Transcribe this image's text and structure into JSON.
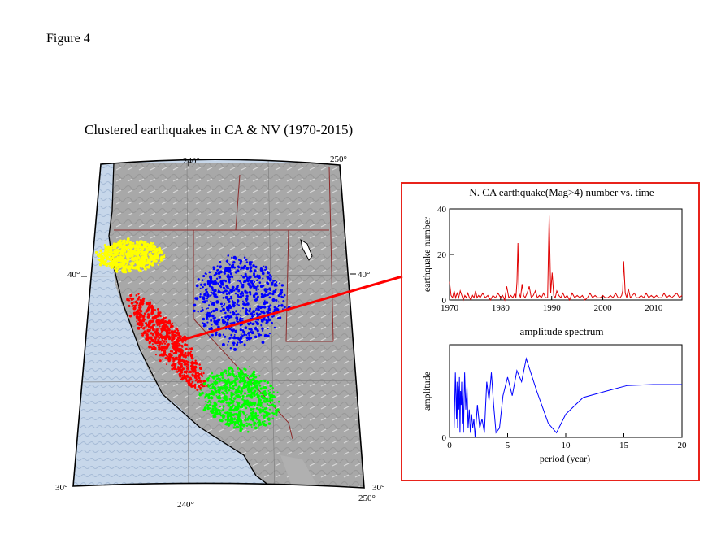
{
  "figure_label": "Figure 4",
  "map": {
    "title": "Clustered earthquakes in CA & NV  (1970-2015)",
    "lon_labels": [
      "240°",
      "250°"
    ],
    "lat_labels": [
      "40°",
      "30°"
    ],
    "clusters": [
      {
        "color": "#ffff00"
      },
      {
        "color": "#0000ff"
      },
      {
        "color": "#ff0000"
      },
      {
        "color": "#00ff00"
      }
    ]
  },
  "chart_data": [
    {
      "type": "line",
      "title": "N. CA earthquake(Mag>4) number vs. time",
      "xlabel": "",
      "ylabel": "earthquake number",
      "xlim": [
        1970,
        2015.5
      ],
      "ylim": [
        0,
        40
      ],
      "xticks": [
        1970,
        1980,
        1990,
        2000,
        2010
      ],
      "yticks": [
        0,
        20,
        40
      ],
      "color": "#e00000",
      "series": [
        {
          "x": [
            1970.0,
            1970.3,
            1970.6,
            1970.9,
            1971.2,
            1971.5,
            1971.8,
            1972.1,
            1972.4,
            1972.7,
            1973.0,
            1973.3,
            1973.6,
            1973.9,
            1974.2,
            1974.5,
            1974.8,
            1975.1,
            1975.4,
            1975.7,
            1976.0,
            1976.5,
            1977.0,
            1977.5,
            1978.0,
            1978.5,
            1979.0,
            1979.5,
            1980.0,
            1980.4,
            1980.8,
            1981.2,
            1981.6,
            1982.0,
            1982.4,
            1982.8,
            1983.0,
            1983.2,
            1983.4,
            1983.6,
            1983.9,
            1984.2,
            1984.5,
            1984.8,
            1985.2,
            1985.6,
            1986.0,
            1986.4,
            1986.8,
            1987.2,
            1987.6,
            1988.0,
            1988.4,
            1988.8,
            1989.2,
            1989.5,
            1989.8,
            1990.1,
            1990.4,
            1990.7,
            1991.0,
            1991.4,
            1991.8,
            1992.2,
            1992.6,
            1993.0,
            1993.5,
            1994.0,
            1994.5,
            1995.0,
            1995.5,
            1996.0,
            1996.5,
            1997.0,
            1997.5,
            1998.0,
            1998.5,
            1999.0,
            1999.5,
            2000.0,
            2000.5,
            2001.0,
            2001.5,
            2002.0,
            2002.5,
            2003.0,
            2003.4,
            2003.7,
            2003.9,
            2004.1,
            2004.4,
            2004.7,
            2005.0,
            2005.4,
            2005.8,
            2006.2,
            2006.6,
            2007.0,
            2007.5,
            2008.0,
            2008.5,
            2009.0,
            2009.5,
            2010.0,
            2010.5,
            2011.0,
            2011.5,
            2012.0,
            2012.5,
            2013.0,
            2013.5,
            2014.0,
            2014.5,
            2015.0,
            2015.5
          ],
          "y": [
            8,
            2,
            1,
            4,
            1,
            3,
            1,
            4,
            2,
            0,
            2,
            1,
            3,
            1,
            0,
            2,
            1,
            4,
            1,
            2,
            1,
            3,
            1,
            2,
            0,
            2,
            1,
            3,
            1,
            2,
            0,
            6,
            1,
            2,
            1,
            3,
            1,
            8,
            25,
            3,
            1,
            7,
            2,
            1,
            3,
            6,
            1,
            2,
            4,
            1,
            2,
            1,
            3,
            1,
            1,
            37,
            3,
            12,
            2,
            1,
            4,
            2,
            1,
            3,
            1,
            2,
            0,
            3,
            1,
            2,
            1,
            2,
            0,
            1,
            3,
            1,
            2,
            1,
            1,
            2,
            1,
            1,
            2,
            1,
            3,
            1,
            1,
            2,
            4,
            17,
            3,
            1,
            5,
            1,
            2,
            3,
            1,
            1,
            2,
            1,
            3,
            1,
            2,
            1,
            2,
            1,
            1,
            3,
            1,
            2,
            1,
            2,
            3,
            1,
            2
          ]
        }
      ]
    },
    {
      "type": "line",
      "title": "amplitude spectrum",
      "xlabel": "period (year)",
      "ylabel": "amplitude",
      "xlim": [
        0,
        20
      ],
      "ylim": [
        0,
        1
      ],
      "xticks": [
        0,
        5,
        10,
        15,
        20
      ],
      "yticks": [
        0
      ],
      "color": "#0000ff",
      "series": [
        {
          "x": [
            0.4,
            0.5,
            0.6,
            0.65,
            0.7,
            0.75,
            0.8,
            0.85,
            0.9,
            0.95,
            1.0,
            1.05,
            1.1,
            1.15,
            1.2,
            1.3,
            1.4,
            1.5,
            1.6,
            1.7,
            1.8,
            1.9,
            2.0,
            2.1,
            2.2,
            2.4,
            2.6,
            2.8,
            3.0,
            3.2,
            3.4,
            3.6,
            3.8,
            4.0,
            4.3,
            4.6,
            5.0,
            5.4,
            5.8,
            6.2,
            6.6,
            7.5,
            8.5,
            9.2,
            10.0,
            11.5,
            13.5,
            15.3,
            17.5,
            20.0
          ],
          "y": [
            0.1,
            0.7,
            0.2,
            0.6,
            0.1,
            0.55,
            0.3,
            0.65,
            0.05,
            0.5,
            0.35,
            0.6,
            0.15,
            0.45,
            0.05,
            0.7,
            0.3,
            0.55,
            0.1,
            0.3,
            0.05,
            0.25,
            0.1,
            0.2,
            0.0,
            0.35,
            0.1,
            0.2,
            0.05,
            0.6,
            0.4,
            0.7,
            0.35,
            0.05,
            0.1,
            0.45,
            0.65,
            0.45,
            0.72,
            0.6,
            0.85,
            0.5,
            0.15,
            0.05,
            0.25,
            0.43,
            0.5,
            0.56,
            0.57,
            0.57
          ]
        }
      ]
    }
  ]
}
